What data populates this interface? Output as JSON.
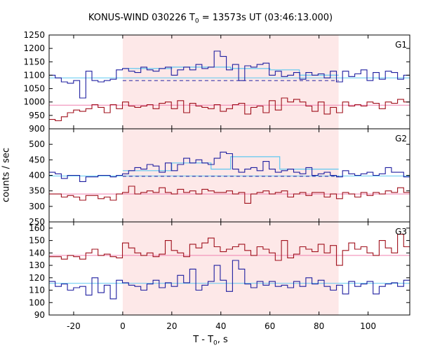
{
  "chart_data": {
    "type": "line",
    "title_pre": "KONUS-WIND 030226 T",
    "title_sub": "0",
    "title_post": " = 13573s UT (03:46:13.000)",
    "xlabel_pre": "T - T",
    "xlabel_sub": "0",
    "xlabel_post": ", s",
    "ylabel": "counts / sec",
    "xlim": [
      -30,
      117
    ],
    "xticks": [
      -20,
      0,
      20,
      40,
      60,
      80,
      100
    ],
    "highlight": {
      "start": 0,
      "end": 88,
      "color": "#fde8e8"
    },
    "colors": {
      "blue": "#1f1fa0",
      "red": "#a0101c",
      "lightblue": "#5fc8f0",
      "pink": "#f080b0"
    },
    "panels": [
      {
        "label": "G1",
        "ylim": [
          900,
          1250
        ],
        "yticks": [
          900,
          950,
          1000,
          1050,
          1100,
          1150,
          1200,
          1250
        ],
        "blue": [
          1100,
          1090,
          1075,
          1070,
          1080,
          1015,
          1115,
          1080,
          1075,
          1080,
          1085,
          1120,
          1125,
          1115,
          1110,
          1130,
          1120,
          1115,
          1125,
          1130,
          1100,
          1120,
          1130,
          1120,
          1140,
          1125,
          1130,
          1190,
          1170,
          1120,
          1140,
          1080,
          1135,
          1130,
          1140,
          1145,
          1100,
          1115,
          1095,
          1100,
          1110,
          1085,
          1110,
          1100,
          1105,
          1090,
          1115,
          1075,
          1115,
          1095,
          1105,
          1120,
          1080,
          1110,
          1085,
          1115,
          1110,
          1085,
          1100
        ],
        "red": [
          935,
          930,
          945,
          960,
          970,
          965,
          975,
          990,
          980,
          960,
          990,
          975,
          1000,
          985,
          980,
          985,
          990,
          975,
          995,
          1000,
          975,
          1005,
          960,
          995,
          985,
          980,
          975,
          990,
          965,
          975,
          990,
          995,
          955,
          980,
          985,
          960,
          1005,
          970,
          1015,
          1000,
          1010,
          1000,
          985,
          965,
          1000,
          955,
          980,
          960,
          1000,
          985,
          990,
          985,
          1000,
          995,
          975,
          1000,
          995,
          1010,
          1000
        ],
        "blue_bg": [
          1080,
          1080
        ],
        "blue_fit": [
          [
            0,
            1125
          ],
          [
            20,
            1125
          ],
          [
            20,
            1130
          ],
          [
            44,
            1130
          ],
          [
            44,
            1125
          ],
          [
            60,
            1125
          ],
          [
            60,
            1120
          ],
          [
            72,
            1120
          ],
          [
            72,
            1100
          ],
          [
            88,
            1100
          ]
        ],
        "pink_level": 988,
        "light_level": 1090
      },
      {
        "label": "G2",
        "ylim": [
          250,
          550
        ],
        "yticks": [
          250,
          300,
          350,
          400,
          450,
          500
        ],
        "blue": [
          410,
          405,
          390,
          400,
          400,
          380,
          395,
          395,
          400,
          400,
          395,
          400,
          405,
          415,
          425,
          420,
          435,
          430,
          410,
          440,
          415,
          435,
          455,
          440,
          450,
          440,
          435,
          455,
          475,
          470,
          420,
          410,
          420,
          425,
          415,
          445,
          420,
          410,
          415,
          420,
          410,
          405,
          425,
          400,
          405,
          410,
          400,
          395,
          415,
          405,
          400,
          405,
          410,
          400,
          405,
          425,
          410,
          410,
          395
        ],
        "red": [
          340,
          340,
          330,
          335,
          330,
          320,
          335,
          335,
          325,
          330,
          320,
          340,
          345,
          365,
          340,
          345,
          350,
          345,
          360,
          345,
          340,
          355,
          345,
          350,
          340,
          355,
          350,
          345,
          345,
          350,
          340,
          345,
          310,
          340,
          345,
          350,
          340,
          345,
          350,
          330,
          340,
          345,
          335,
          345,
          345,
          330,
          340,
          325,
          345,
          340,
          330,
          345,
          335,
          345,
          340,
          350,
          345,
          360,
          345
        ],
        "blue_bg": [
          397,
          397
        ],
        "blue_fit": [
          [
            0,
            415
          ],
          [
            20,
            415
          ],
          [
            20,
            440
          ],
          [
            36,
            440
          ],
          [
            36,
            420
          ],
          [
            44,
            420
          ],
          [
            44,
            460
          ],
          [
            64,
            460
          ],
          [
            64,
            420
          ],
          [
            88,
            420
          ]
        ],
        "pink_level": 340,
        "light_level": 398
      },
      {
        "label": "G3",
        "ylim": [
          90,
          165
        ],
        "yticks": [
          90,
          100,
          110,
          120,
          130,
          140,
          150,
          160
        ],
        "blue": [
          117,
          113,
          115,
          110,
          112,
          113,
          106,
          120,
          108,
          114,
          103,
          118,
          116,
          114,
          113,
          110,
          115,
          118,
          112,
          116,
          113,
          122,
          116,
          127,
          110,
          114,
          117,
          130,
          118,
          109,
          134,
          127,
          115,
          112,
          117,
          114,
          117,
          113,
          114,
          112,
          117,
          113,
          120,
          115,
          118,
          113,
          110,
          114,
          107,
          117,
          113,
          115,
          117,
          107,
          113,
          115,
          116,
          113,
          118
        ],
        "red": [
          137,
          137,
          135,
          138,
          137,
          135,
          140,
          143,
          138,
          139,
          137,
          136,
          148,
          144,
          140,
          138,
          140,
          137,
          139,
          150,
          142,
          140,
          137,
          147,
          144,
          148,
          152,
          145,
          141,
          143,
          145,
          147,
          142,
          138,
          145,
          143,
          140,
          134,
          150,
          136,
          139,
          145,
          143,
          141,
          147,
          140,
          146,
          130,
          142,
          148,
          143,
          145,
          140,
          138,
          150,
          144,
          140,
          155,
          145
        ],
        "pink_level": 138,
        "light_level": 115.5
      }
    ]
  }
}
